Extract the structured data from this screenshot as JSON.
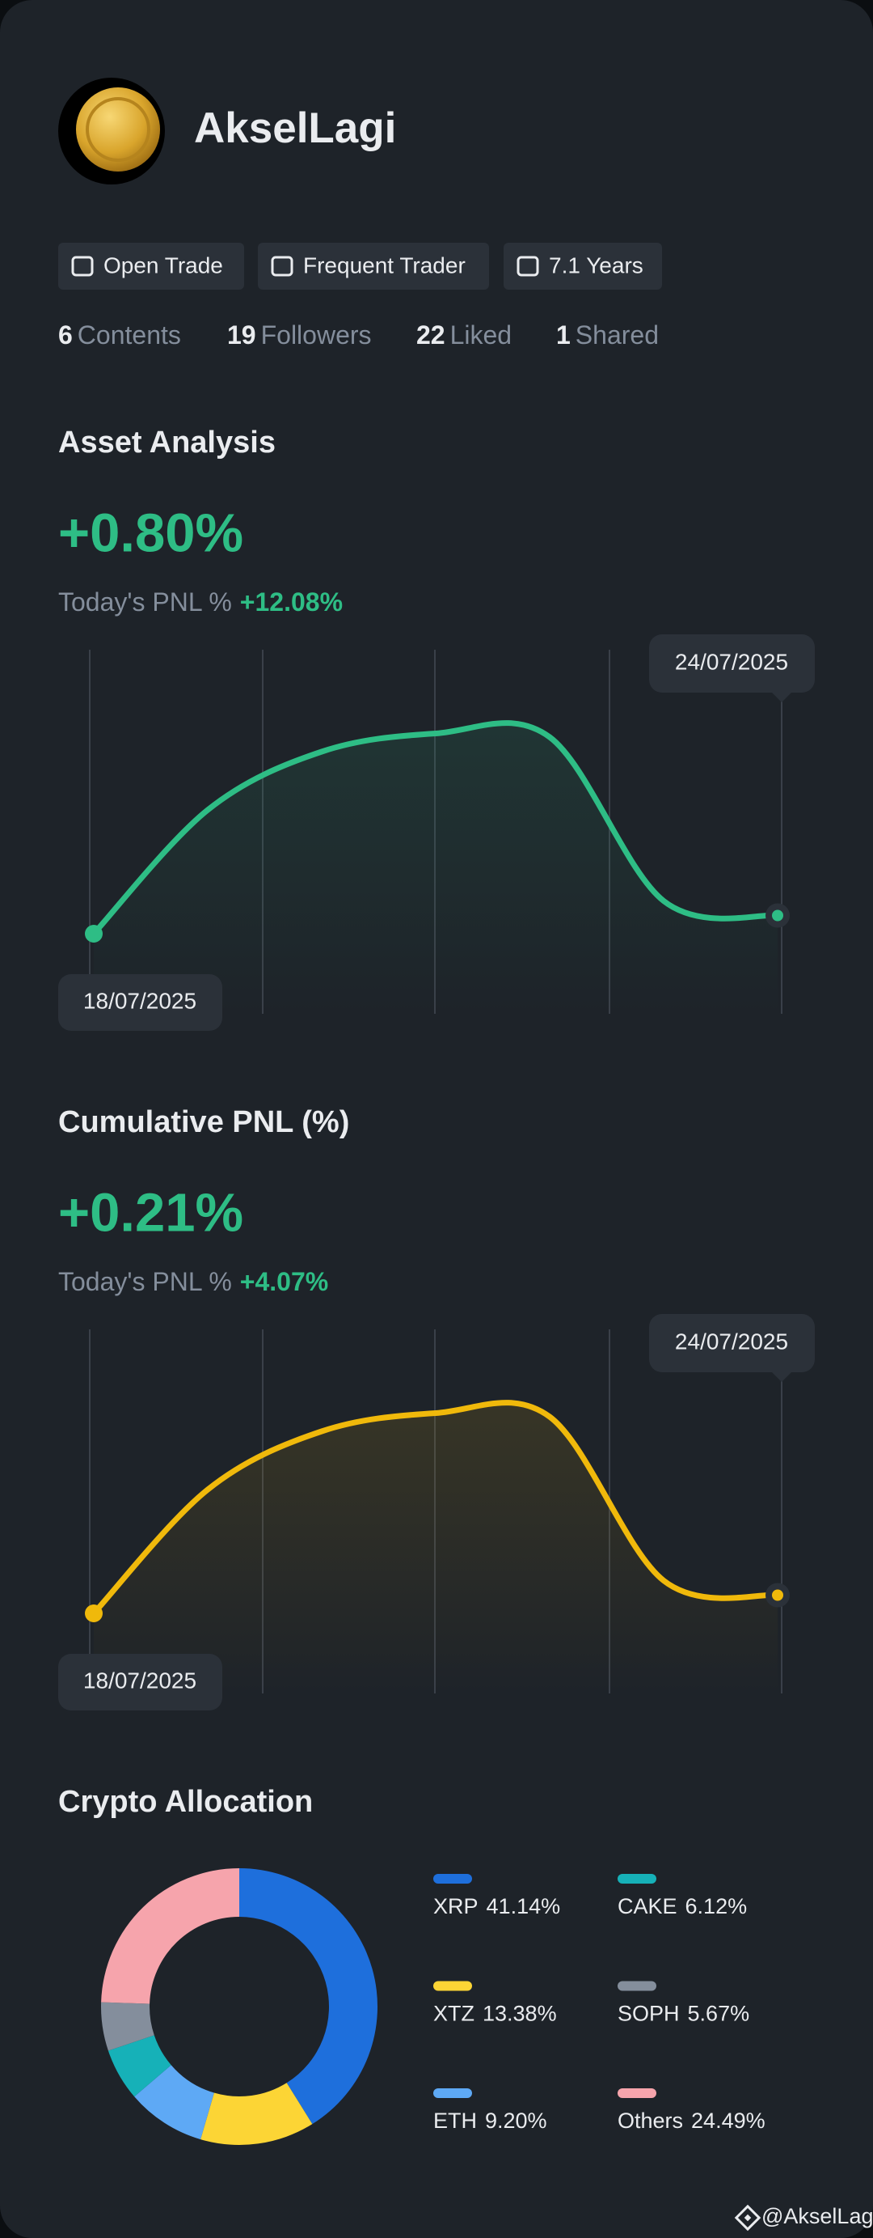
{
  "profile": {
    "name": "AkselLagi",
    "badges": [
      "Open Trade",
      "Frequent Trader",
      "7.1 Years"
    ],
    "stats": [
      {
        "count": "6",
        "label": "Contents"
      },
      {
        "count": "19",
        "label": "Followers"
      },
      {
        "count": "22",
        "label": "Liked"
      },
      {
        "count": "1",
        "label": "Shared"
      }
    ]
  },
  "chart_data": [
    {
      "type": "line",
      "title": "Asset Analysis",
      "headline": "+0.80%",
      "subtitle": "Today's PNL %",
      "subtitle_value": "+12.08%",
      "categories": [
        "18/07/2025",
        null,
        null,
        null,
        null,
        null,
        "24/07/2025"
      ],
      "values": [
        22,
        56,
        72,
        77,
        76,
        31,
        27
      ],
      "ylim": [
        0,
        100
      ],
      "color": "#2ebd85"
    },
    {
      "type": "line",
      "title": "Cumulative PNL (%)",
      "headline": "+0.21%",
      "subtitle": "Today's PNL %",
      "subtitle_value": "+4.07%",
      "categories": [
        "18/07/2025",
        null,
        null,
        null,
        null,
        null,
        "24/07/2025"
      ],
      "values": [
        22,
        56,
        72,
        77,
        76,
        31,
        27
      ],
      "ylim": [
        0,
        100
      ],
      "color": "#f0b90b"
    },
    {
      "type": "pie",
      "title": "Crypto Allocation",
      "categories": [
        "XRP",
        "XTZ",
        "ETH",
        "CAKE",
        "SOPH",
        "Others"
      ],
      "values": [
        41.14,
        13.38,
        9.2,
        6.12,
        5.67,
        24.49
      ],
      "value_labels": [
        "41.14%",
        "13.38%",
        "9.20%",
        "6.12%",
        "5.67%",
        "24.49%"
      ],
      "colors": [
        "#1e6fdc",
        "#fcd535",
        "#5ea9f5",
        "#16b1b8",
        "#848e9c",
        "#f6a4ac"
      ]
    }
  ],
  "watermark": "@AkselLagi"
}
